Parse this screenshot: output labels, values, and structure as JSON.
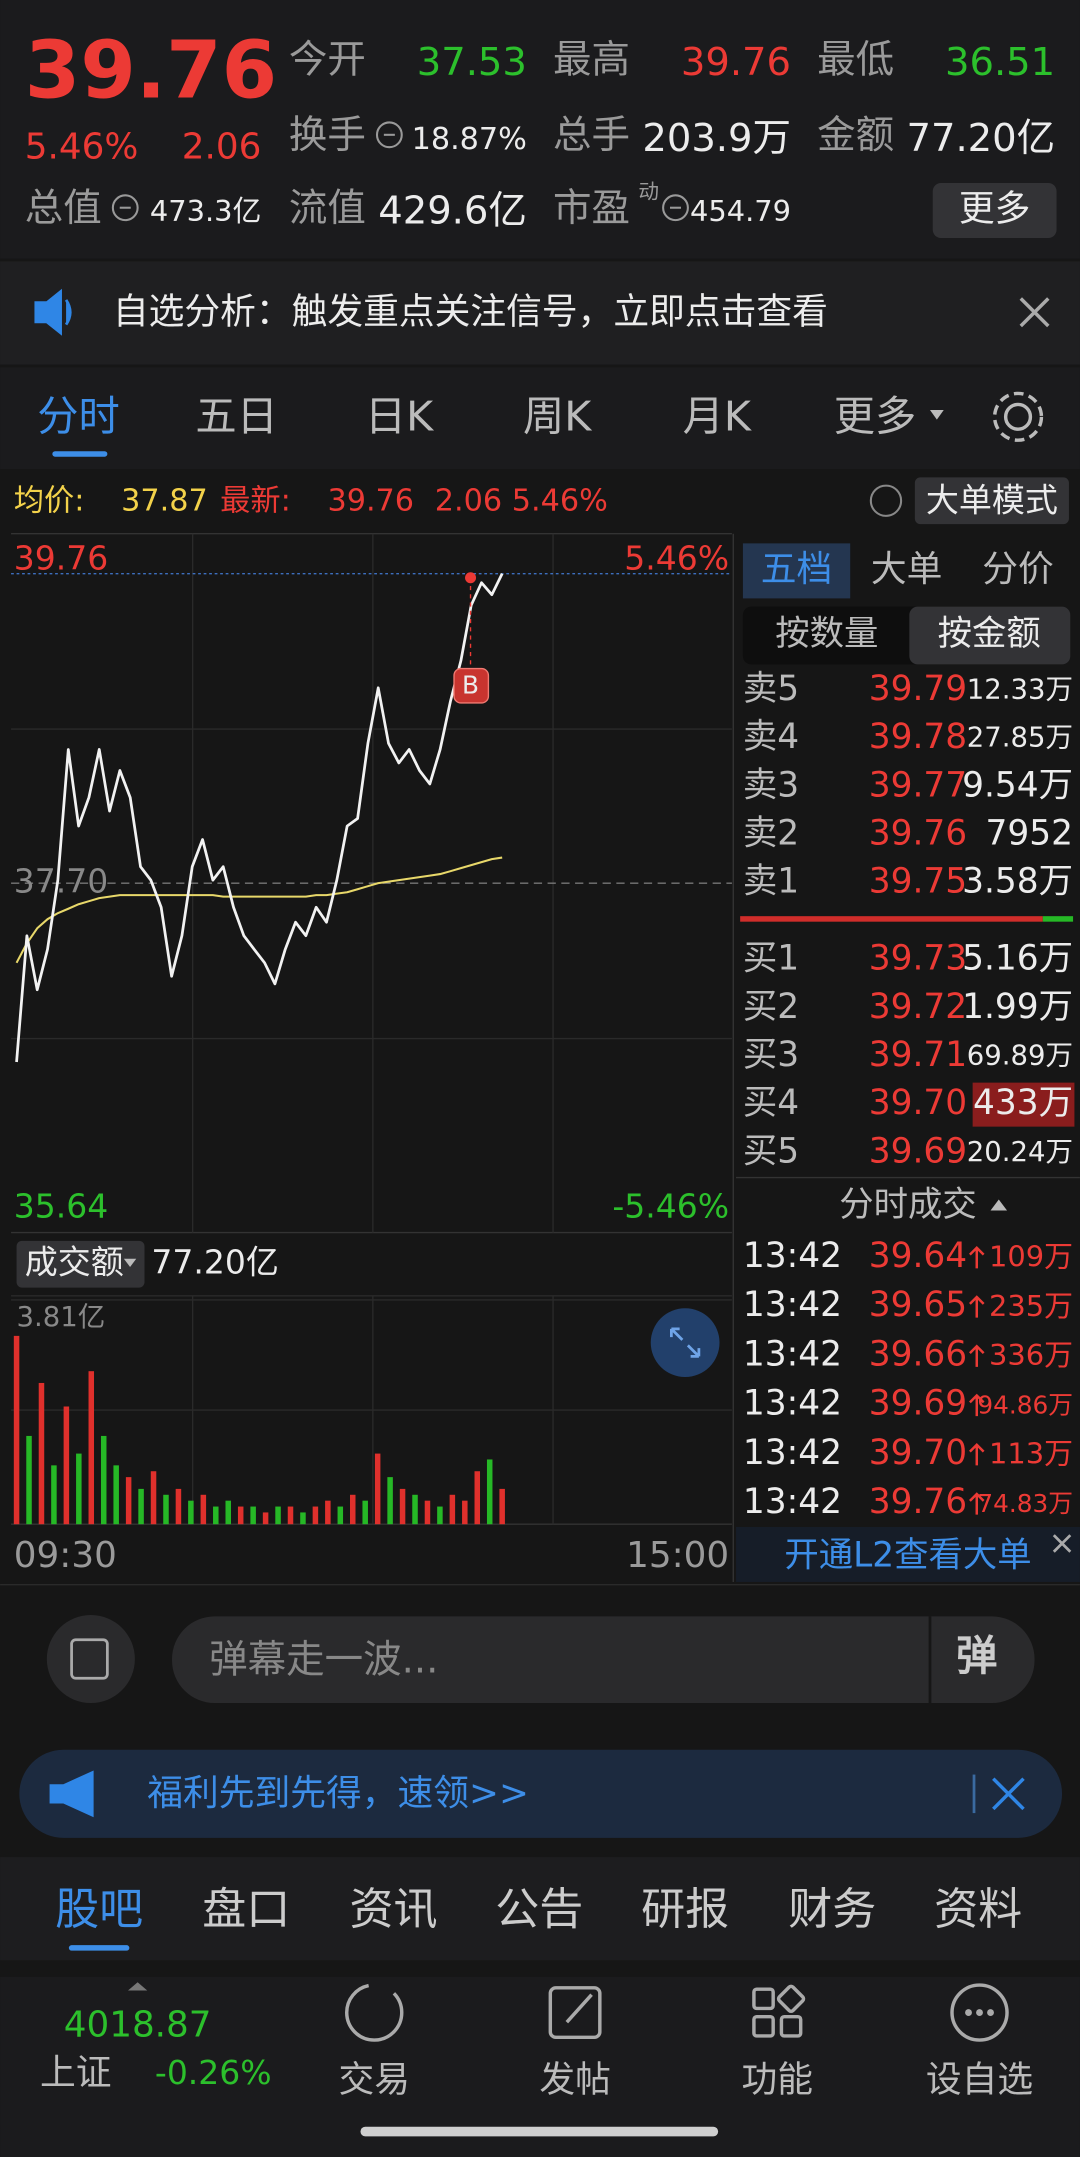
{
  "quote": {
    "price": "39.76",
    "change_pct": "5.46%",
    "change": "2.06",
    "stats": [
      {
        "label": "今开",
        "value": "37.53"
      },
      {
        "label": "最高",
        "value": "39.76"
      },
      {
        "label": "最低",
        "value": "36.51"
      },
      {
        "label": "换手",
        "value": "18.87%"
      },
      {
        "label": "总手",
        "value": "203.9万"
      },
      {
        "label": "金额",
        "value": "77.20亿"
      },
      {
        "label": "总值",
        "value": "473.3亿"
      },
      {
        "label": "流值",
        "value": "429.6亿"
      },
      {
        "label": "市盈",
        "value": "454.79",
        "badge": "动"
      }
    ],
    "more_button": "更多"
  },
  "banner": "自选分析：触发重点关注信号，立即点击查看",
  "tabs": [
    "分时",
    "五日",
    "日K",
    "周K",
    "月K",
    "更多"
  ],
  "info_bar": {
    "avg_label": "均价:",
    "avg": "37.87",
    "latest_label": "最新:",
    "latest": "39.76",
    "change": "2.06",
    "change_pct": "5.46%",
    "mode_button": "大单模式"
  },
  "price_chart": {
    "ylim": [
      35.64,
      39.76
    ],
    "yticks": [
      39.76,
      {
        "value": 37.7,
        "label": "37.70"
      },
      35.64
    ],
    "pct_ticks": [
      "5.46%",
      "-5.46%"
    ],
    "price": [
      36.51,
      37.35,
      36.99,
      37.26,
      37.72,
      38.59,
      38.08,
      38.27,
      38.59,
      38.18,
      38.45,
      38.27,
      37.81,
      37.72,
      37.54,
      37.08,
      37.35,
      37.81,
      37.99,
      37.72,
      37.81,
      37.54,
      37.35,
      37.26,
      37.17,
      37.03,
      37.26,
      37.44,
      37.35,
      37.54,
      37.44,
      37.72,
      38.08,
      38.13,
      38.63,
      39.0,
      38.63,
      38.5,
      38.59,
      38.45,
      38.36,
      38.59,
      38.91,
      39.18,
      39.55,
      39.7,
      39.62,
      39.76
    ],
    "avg": [
      37.17,
      37.3,
      37.4,
      37.46,
      37.5,
      37.53,
      37.56,
      37.58,
      37.6,
      37.61,
      37.62,
      37.62,
      37.62,
      37.62,
      37.62,
      37.62,
      37.62,
      37.62,
      37.62,
      37.62,
      37.61,
      37.61,
      37.61,
      37.61,
      37.61,
      37.61,
      37.61,
      37.61,
      37.61,
      37.62,
      37.62,
      37.63,
      37.64,
      37.66,
      37.68,
      37.7,
      37.71,
      37.72,
      37.73,
      37.74,
      37.75,
      37.76,
      37.78,
      37.8,
      37.82,
      37.84,
      37.86,
      37.87
    ],
    "marker": "B"
  },
  "volume_chart": {
    "label": "成交额",
    "total": "77.20亿",
    "ylim": [
      0,
      3.81
    ],
    "yticks": [
      {
        "value": 3.81,
        "label": "3.81亿"
      }
    ],
    "values": [
      3.2,
      1.5,
      2.4,
      1.0,
      2.0,
      1.2,
      2.6,
      1.5,
      1.0,
      0.8,
      0.6,
      0.9,
      0.5,
      0.6,
      0.4,
      0.5,
      0.3,
      0.4,
      0.3,
      0.3,
      0.2,
      0.3,
      0.3,
      0.2,
      0.3,
      0.4,
      0.3,
      0.5,
      0.4,
      1.2,
      0.8,
      0.6,
      0.5,
      0.4,
      0.3,
      0.5,
      0.4,
      0.9,
      1.1,
      0.6
    ],
    "directions": [
      "up",
      "down",
      "up",
      "down",
      "up",
      "down",
      "up",
      "down",
      "down",
      "up",
      "down",
      "up",
      "down",
      "up",
      "down",
      "up",
      "down",
      "down",
      "up",
      "down",
      "up",
      "down",
      "up",
      "down",
      "up",
      "up",
      "down",
      "up",
      "down",
      "up",
      "down",
      "up",
      "down",
      "up",
      "down",
      "up",
      "up",
      "up",
      "down",
      "up"
    ],
    "xticks": [
      "09:30",
      "15:00"
    ]
  },
  "order_book": {
    "tabs": [
      "五档",
      "大单",
      "分价"
    ],
    "modes": [
      "按数量",
      "按金额"
    ],
    "asks": [
      {
        "label": "卖5",
        "price": "39.79",
        "amount": "12.33万"
      },
      {
        "label": "卖4",
        "price": "39.78",
        "amount": "27.85万"
      },
      {
        "label": "卖3",
        "price": "39.77",
        "amount": "9.54万"
      },
      {
        "label": "卖2",
        "price": "39.76",
        "amount": "7952"
      },
      {
        "label": "卖1",
        "price": "39.75",
        "amount": "3.58万"
      }
    ],
    "bids": [
      {
        "label": "买1",
        "price": "39.73",
        "amount": "5.16万"
      },
      {
        "label": "买2",
        "price": "39.72",
        "amount": "1.99万"
      },
      {
        "label": "买3",
        "price": "39.71",
        "amount": "69.89万"
      },
      {
        "label": "买4",
        "price": "39.70",
        "amount": "433万",
        "highlight": true
      },
      {
        "label": "买5",
        "price": "39.69",
        "amount": "20.24万"
      }
    ],
    "trades_title": "分时成交",
    "trades": [
      [
        "13:42",
        "39.64",
        "109万"
      ],
      [
        "13:42",
        "39.65",
        "235万"
      ],
      [
        "13:42",
        "39.66",
        "336万"
      ],
      [
        "13:42",
        "39.69",
        "94.86万"
      ],
      [
        "13:42",
        "39.70",
        "113万"
      ],
      [
        "13:42",
        "39.76",
        "74.83万"
      ]
    ],
    "l2_link": "开通L2查看大单"
  },
  "comment": {
    "placeholder": "弹幕走一波...",
    "button": "弹"
  },
  "promo": "福利先到先得，速领>>",
  "section_tabs": [
    "股吧",
    "盘口",
    "资讯",
    "公告",
    "研报",
    "财务",
    "资料"
  ],
  "footer": {
    "index": {
      "value": "4018.87",
      "name": "上证",
      "change": "-0.26%"
    },
    "nav": [
      "交易",
      "发帖",
      "功能",
      "设自选"
    ]
  }
}
